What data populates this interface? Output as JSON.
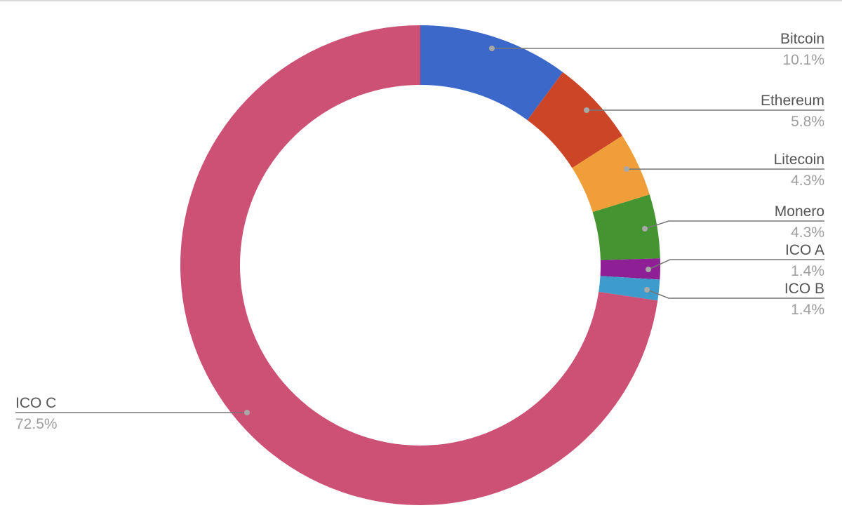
{
  "chart_data": {
    "type": "pie",
    "donut": true,
    "title": "",
    "legend": "labeled",
    "slices": [
      {
        "label": "Bitcoin",
        "value": 10.1,
        "pct_label": "10.1%",
        "color": "#3c69c9"
      },
      {
        "label": "Ethereum",
        "value": 5.8,
        "pct_label": "5.8%",
        "color": "#cc4527"
      },
      {
        "label": "Litecoin",
        "value": 4.3,
        "pct_label": "4.3%",
        "color": "#f09e3a"
      },
      {
        "label": "Monero",
        "value": 4.3,
        "pct_label": "4.3%",
        "color": "#449432"
      },
      {
        "label": "ICO A",
        "value": 1.4,
        "pct_label": "1.4%",
        "color": "#8e1f95"
      },
      {
        "label": "ICO B",
        "value": 1.4,
        "pct_label": "1.4%",
        "color": "#3d9ccc"
      },
      {
        "label": "ICO C",
        "value": 72.5,
        "pct_label": "72.5%",
        "color": "#cc5174"
      }
    ]
  }
}
